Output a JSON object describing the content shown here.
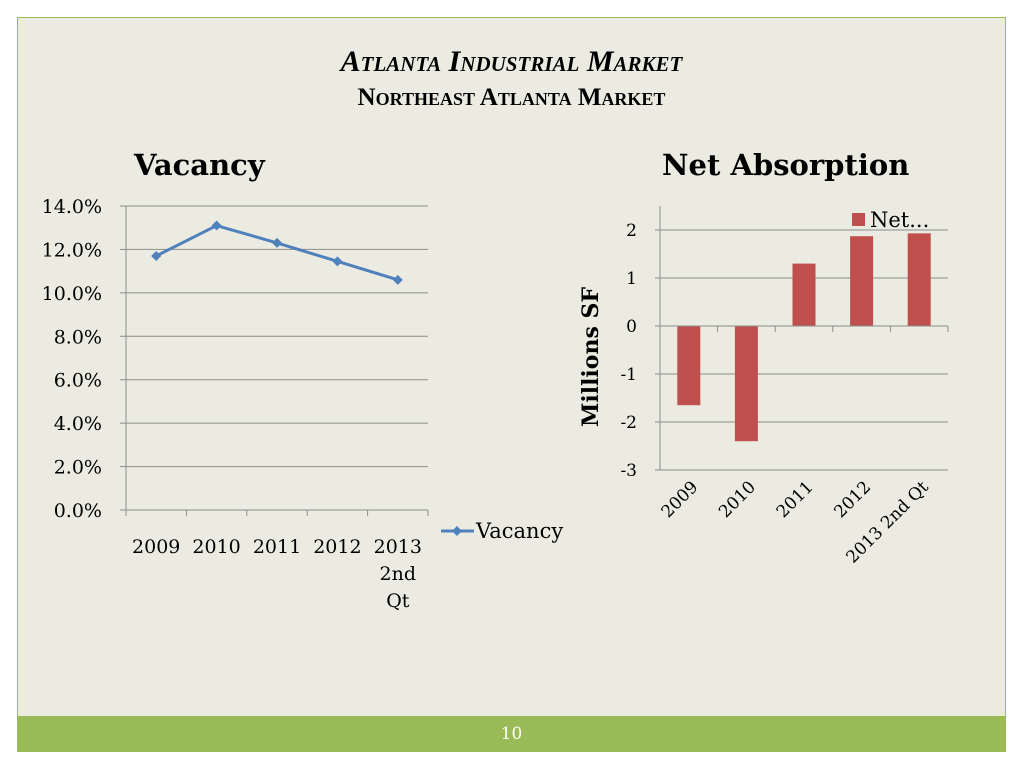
{
  "slide": {
    "title": "Atlanta Industrial Market",
    "subtitle": "Northeast Atlanta Market",
    "page_number": "10"
  },
  "colors": {
    "background": "#ecebe1",
    "footer": "#9bbb59",
    "line_series": "#4f81bd",
    "bar_series": "#c0504d"
  },
  "chart_data": [
    {
      "type": "line",
      "title": "Vacancy",
      "categories": [
        "2009",
        "2010",
        "2011",
        "2012",
        "2013 2nd Qt"
      ],
      "category_label_lines": [
        [
          "2009"
        ],
        [
          "2010"
        ],
        [
          "2011"
        ],
        [
          "2012"
        ],
        [
          "2013",
          "2nd",
          "Qt"
        ]
      ],
      "series": [
        {
          "name": "Vacancy",
          "values": [
            11.7,
            13.1,
            12.3,
            11.45,
            10.6
          ]
        }
      ],
      "ylim": [
        0,
        14
      ],
      "yticks": [
        0,
        2,
        4,
        6,
        8,
        10,
        12,
        14
      ],
      "ytick_labels": [
        "0.0%",
        "2.0%",
        "4.0%",
        "6.0%",
        "8.0%",
        "10.0%",
        "12.0%",
        "14.0%"
      ],
      "grid": true,
      "legend": "right"
    },
    {
      "type": "bar",
      "title": "Net Absorption",
      "ylabel": "Millions  SF",
      "categories": [
        "2009",
        "2010",
        "2011",
        "2012",
        "2013 2nd Qt"
      ],
      "series": [
        {
          "name": "Net...",
          "values": [
            -1.65,
            -2.4,
            1.3,
            1.87,
            1.93
          ]
        }
      ],
      "ylim": [
        -3,
        2.5
      ],
      "yticks": [
        -3,
        -2,
        -1,
        0,
        1,
        2
      ],
      "grid": true,
      "legend": "top-right"
    }
  ]
}
